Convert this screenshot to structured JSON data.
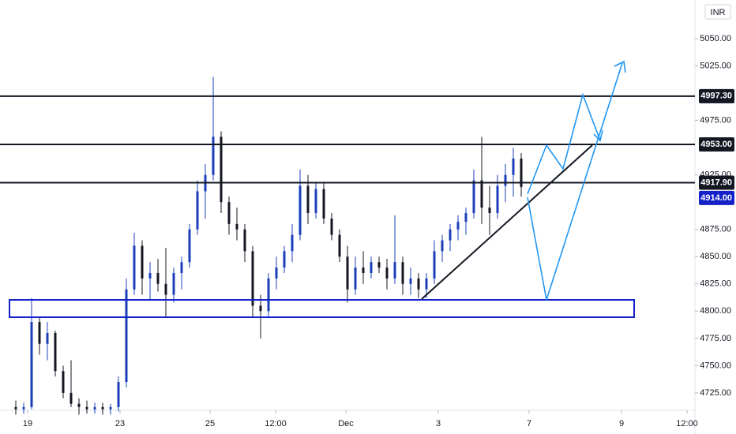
{
  "chart_data": {
    "type": "candlestick",
    "currency": "INR",
    "up_color": "#1b3fb8",
    "down_color": "#131722",
    "open": [
      4712,
      4710,
      4712,
      4790,
      4770,
      4780,
      4745,
      4725,
      4715,
      4712,
      4710,
      4712,
      4710,
      4712,
      4735,
      4820,
      4860,
      4830,
      4835,
      4825,
      4815,
      4835,
      4845,
      4875,
      4910,
      4925,
      4960,
      4900,
      4880,
      4875,
      4855,
      4805,
      4800,
      4830,
      4840,
      4855,
      4870,
      4915,
      4890,
      4912,
      4885,
      4870,
      4850,
      4820,
      4840,
      4835,
      4845,
      4840,
      4830,
      4845,
      4825,
      4830,
      4820,
      4830,
      4855,
      4865,
      4875,
      4882,
      4890,
      4920,
      4895,
      4890,
      4915,
      4925,
      4940
    ],
    "high": [
      4718,
      4716,
      4812,
      4795,
      4790,
      4782,
      4750,
      4755,
      4720,
      4718,
      4716,
      4716,
      4715,
      4740,
      4830,
      4872,
      4865,
      4845,
      4848,
      4858,
      4840,
      4850,
      4880,
      4920,
      4935,
      5015,
      4965,
      4905,
      4895,
      4880,
      4860,
      4815,
      4835,
      4850,
      4860,
      4880,
      4930,
      4925,
      4918,
      4918,
      4890,
      4875,
      4860,
      4850,
      4855,
      4850,
      4850,
      4848,
      4888,
      4850,
      4840,
      4835,
      4835,
      4865,
      4870,
      4880,
      4888,
      4895,
      4930,
      4960,
      4915,
      4925,
      4935,
      4950,
      4945
    ],
    "low": [
      4705,
      4706,
      4710,
      4760,
      4755,
      4740,
      4720,
      4712,
      4705,
      4706,
      4706,
      4705,
      4705,
      4708,
      4730,
      4815,
      4815,
      4810,
      4818,
      4795,
      4808,
      4820,
      4840,
      4870,
      4885,
      4920,
      4890,
      4870,
      4865,
      4845,
      4795,
      4775,
      4795,
      4820,
      4835,
      4845,
      4865,
      4880,
      4885,
      4880,
      4865,
      4845,
      4808,
      4815,
      4825,
      4830,
      4835,
      4820,
      4825,
      4815,
      4815,
      4812,
      4812,
      4825,
      4845,
      4855,
      4865,
      4870,
      4885,
      4880,
      4870,
      4885,
      4900,
      4905,
      4905
    ],
    "close": [
      4710,
      4712,
      4790,
      4770,
      4780,
      4745,
      4725,
      4715,
      4712,
      4710,
      4712,
      4710,
      4712,
      4735,
      4820,
      4860,
      4830,
      4835,
      4825,
      4815,
      4835,
      4845,
      4875,
      4910,
      4925,
      4960,
      4900,
      4880,
      4875,
      4855,
      4805,
      4800,
      4830,
      4840,
      4855,
      4870,
      4915,
      4890,
      4912,
      4885,
      4870,
      4850,
      4820,
      4840,
      4835,
      4845,
      4840,
      4830,
      4845,
      4825,
      4830,
      4820,
      4830,
      4855,
      4865,
      4875,
      4882,
      4890,
      4920,
      4895,
      4890,
      4915,
      4925,
      4940,
      4914
    ],
    "ylim": [
      4709,
      5085.5
    ],
    "yticks": [
      {
        "value": 4725,
        "label": "4725.00"
      },
      {
        "value": 4750,
        "label": "4750.00"
      },
      {
        "value": 4775,
        "label": "4775.00"
      },
      {
        "value": 4800,
        "label": "4800.00"
      },
      {
        "value": 4825,
        "label": "4825.00"
      },
      {
        "value": 4850,
        "label": "4850.00"
      },
      {
        "value": 4875,
        "label": "4875.00"
      },
      {
        "value": 4925,
        "label": "4925.00"
      },
      {
        "value": 4975,
        "label": "4975.00"
      },
      {
        "value": 5025,
        "label": "5025.00"
      },
      {
        "value": 5050,
        "label": "5050.00"
      }
    ],
    "xlim": [
      -2,
      86
    ],
    "xticks": [
      {
        "value": 1.5,
        "label": "19"
      },
      {
        "value": 13.2,
        "label": "23"
      },
      {
        "value": 24.6,
        "label": "25"
      },
      {
        "value": 32.9,
        "label": "12:00"
      },
      {
        "value": 41.8,
        "label": "Dec"
      },
      {
        "value": 53.5,
        "label": "3"
      },
      {
        "value": 65,
        "label": "7"
      },
      {
        "value": 76.7,
        "label": "9"
      },
      {
        "value": 85,
        "label": "12:00"
      }
    ],
    "levels": [
      {
        "value": 4997.3,
        "label": "4997.30"
      },
      {
        "value": 4953,
        "label": "4953.00"
      },
      {
        "value": 4917.9,
        "label": "4917.90"
      }
    ],
    "last_price": {
      "value": 4914,
      "label": "4914.00"
    }
  }
}
